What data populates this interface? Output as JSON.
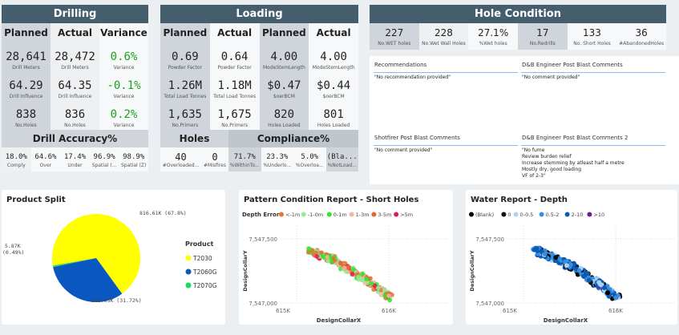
{
  "drilling": {
    "title": "Drilling",
    "cols": [
      "Planned",
      "Actual",
      "Variance"
    ],
    "rows": [
      [
        {
          "v": "28,641",
          "l": "Drill Meters"
        },
        {
          "v": "28,472",
          "l": "Drill Meters"
        },
        {
          "v": "0.6%",
          "l": "Variance"
        }
      ],
      [
        {
          "v": "64.29",
          "l": "Drill Influence"
        },
        {
          "v": "64.35",
          "l": "Drill Influence"
        },
        {
          "v": "-0.1%",
          "l": "Variance"
        }
      ],
      [
        {
          "v": "838",
          "l": "No.Holes"
        },
        {
          "v": "836",
          "l": "No.Holes"
        },
        {
          "v": "0.2%",
          "l": "Variance"
        }
      ]
    ],
    "accuracy_title": "Drill Accuracy%",
    "accuracy": [
      {
        "v": "18.0%",
        "l": "Comply"
      },
      {
        "v": "64.6%",
        "l": "Over"
      },
      {
        "v": "17.4%",
        "l": "Under"
      },
      {
        "v": "96.9%",
        "l": "Spatial (..."
      },
      {
        "v": "98.9%",
        "l": "Spatial (Z)"
      }
    ]
  },
  "loading": {
    "title": "Loading",
    "cols": [
      "Planned",
      "Actual",
      "Planned",
      "Actual"
    ],
    "rows": [
      [
        {
          "v": "0.69",
          "l": "Powder Factor"
        },
        {
          "v": "0.64",
          "l": "Powder Factor"
        },
        {
          "v": "4.00",
          "l": "ModeStemLength"
        },
        {
          "v": "4.00",
          "l": "ModeStemLength"
        }
      ],
      [
        {
          "v": "1.26M",
          "l": "Total Load Tonnes"
        },
        {
          "v": "1.18M",
          "l": "Total Load Tonnes"
        },
        {
          "v": "$0.47",
          "l": "$oerBCM"
        },
        {
          "v": "$0.44",
          "l": "$oerBCM"
        }
      ],
      [
        {
          "v": "1,635",
          "l": "No.Primers"
        },
        {
          "v": "1,675",
          "l": "No.Primers"
        },
        {
          "v": "820",
          "l": "Holes Loaded"
        },
        {
          "v": "801",
          "l": "Holes Loaded"
        }
      ]
    ],
    "holes_title": "Holes",
    "compliance_title": "Compliance%",
    "bottom": [
      {
        "v": "40",
        "l": "#Overloaded..."
      },
      {
        "v": "0",
        "l": "#Misfires"
      },
      {
        "v": "71.7%",
        "l": "%WithinTo..."
      },
      {
        "v": "23.3%",
        "l": "%Underlo..."
      },
      {
        "v": "5.0%",
        "l": "%Overloa..."
      },
      {
        "v": "(Bla...",
        "l": "%NotLoad..."
      }
    ]
  },
  "hole_condition": {
    "title": "Hole Condition",
    "stats": [
      {
        "v": "227",
        "l": "No.WET holes"
      },
      {
        "v": "228",
        "l": "No.Wet Wall Holes"
      },
      {
        "v": "27.1%",
        "l": "%Wet holes"
      },
      {
        "v": "17",
        "l": "No.Redrills"
      },
      {
        "v": "133",
        "l": "No. Short Holes"
      },
      {
        "v": "36",
        "l": "#AbandonedHoles"
      }
    ]
  },
  "comments": [
    {
      "title": "Recommendations",
      "text": "\"No recommendation provided\""
    },
    {
      "title": "D&B Engineer Post Blast Comments",
      "text": "\"No comment provided\""
    },
    {
      "title": "Shotfirer Post Blast Comments",
      "text": "\"No comment provided\""
    },
    {
      "title": "D&B Engineer Post Blast Comments 2",
      "text": "\"No fume\nReview burden relief\nIncrease stemming by atleast half a metre\nMostly dry, good loading\nVF of 2-3\""
    }
  ],
  "chart_data": [
    {
      "type": "pie",
      "title": "Product Split",
      "legend_title": "Product",
      "legend_position": "right",
      "slices": [
        {
          "name": "T2030",
          "value": 816.61,
          "label": "816.61K (67.8%)",
          "color": "#ffff00"
        },
        {
          "name": "T2060G",
          "value": 382.03,
          "label": "382.03K (31.72%)",
          "color": "#0a57c2"
        },
        {
          "name": "T2070G",
          "value": 5.87,
          "label": "5.87K (0.49%)",
          "color": "#1ed760"
        }
      ]
    },
    {
      "type": "scatter",
      "title": "Pattern Condition Report - Short Holes",
      "xlabel": "DesignCollarX",
      "ylabel": "DesignCollarY",
      "xticks": [
        "615K",
        "616K"
      ],
      "yticks": [
        "7,547,500",
        "7,547,000"
      ],
      "xlim": [
        615000,
        616000
      ],
      "ylim": [
        7547000,
        7547500
      ],
      "legend_title": "Depth Error",
      "legend_position": "top",
      "grid": true,
      "series": [
        {
          "name": "<-1m",
          "color": "#e8743b"
        },
        {
          "name": "-1-0m",
          "color": "#98e898"
        },
        {
          "name": "0-1m",
          "color": "#2ee82e"
        },
        {
          "name": "1-3m",
          "color": "#f3b8a0"
        },
        {
          "name": "3-5m",
          "color": "#e8642c"
        },
        {
          "name": ">5m",
          "color": "#e0195a"
        }
      ],
      "trend": [
        [
          615260,
          7547410
        ],
        [
          615500,
          7547330
        ],
        [
          615750,
          7547200
        ],
        [
          616020,
          7547040
        ]
      ]
    },
    {
      "type": "scatter",
      "title": "Water Report - Depth",
      "xlabel": "DesignCollarX",
      "ylabel": "DesignCollarY",
      "xticks": [
        "615K",
        "616K"
      ],
      "yticks": [
        "7,547,500",
        "7,547,000"
      ],
      "xlim": [
        615000,
        616000
      ],
      "ylim": [
        7547000,
        7547500
      ],
      "legend_position": "top",
      "grid": true,
      "series": [
        {
          "name": "(Blank)",
          "color": "#000000"
        },
        {
          "name": "0",
          "color": "#111111"
        },
        {
          "name": "0-0.5",
          "color": "#a9d2f5"
        },
        {
          "name": "0.5-2",
          "color": "#3a8ee0"
        },
        {
          "name": "2-10",
          "color": "#0d5bb5"
        },
        {
          "name": ">10",
          "color": "#6a1b9a"
        }
      ],
      "trend": [
        [
          615260,
          7547410
        ],
        [
          615500,
          7547330
        ],
        [
          615750,
          7547200
        ],
        [
          616020,
          7547040
        ]
      ]
    }
  ]
}
